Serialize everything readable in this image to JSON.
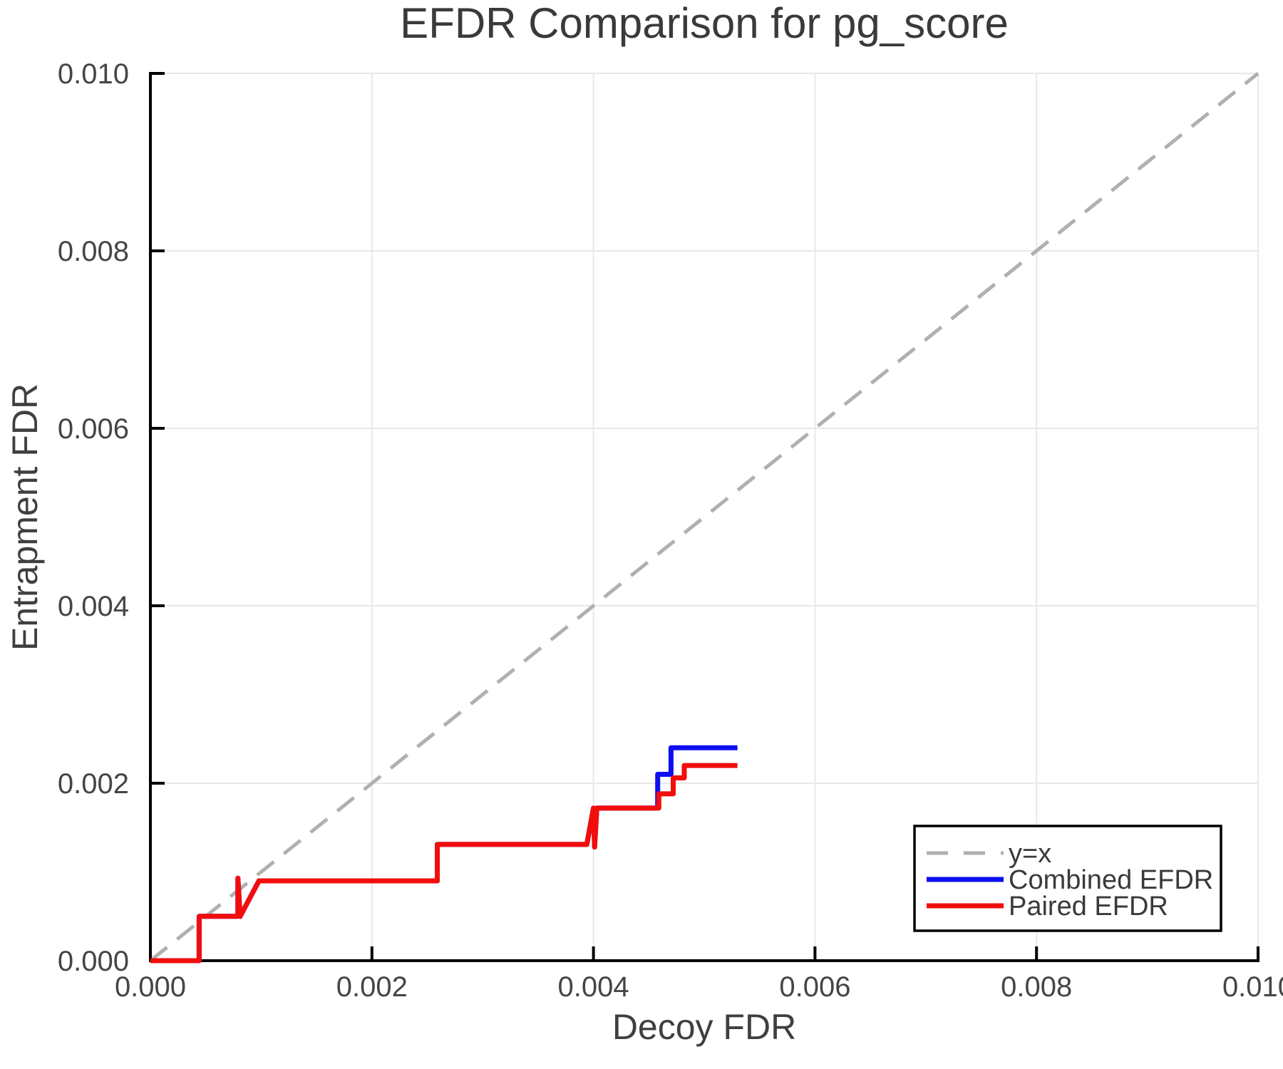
{
  "chart_data": {
    "type": "line",
    "title": "EFDR Comparison for pg_score",
    "xlabel": "Decoy FDR",
    "ylabel": "Entrapment FDR",
    "xlim": [
      0.0,
      0.01
    ],
    "ylim": [
      0.0,
      0.01
    ],
    "xticks": [
      0.0,
      0.002,
      0.004,
      0.006,
      0.008,
      0.01
    ],
    "yticks": [
      0.0,
      0.002,
      0.004,
      0.006,
      0.008,
      0.01
    ],
    "tick_decimals": 3,
    "grid": true,
    "legend_position": "lower right",
    "reference_line": {
      "label": "y=x",
      "from": [
        0.0,
        0.0
      ],
      "to": [
        0.01,
        0.01
      ],
      "color": "#b0b0b0",
      "dashed": true
    },
    "series": [
      {
        "name": "Combined EFDR",
        "color": "#0e0ef2",
        "points": [
          [
            0.0,
            0.0
          ],
          [
            0.00044,
            0.0
          ],
          [
            0.00044,
            0.0005
          ],
          [
            0.00079,
            0.0005
          ],
          [
            0.00079,
            0.00093
          ],
          [
            0.00081,
            0.0005
          ],
          [
            0.00098,
            0.0009
          ],
          [
            0.00259,
            0.0009
          ],
          [
            0.00259,
            0.00131
          ],
          [
            0.00394,
            0.00131
          ],
          [
            0.004,
            0.00172
          ],
          [
            0.00401,
            0.00128
          ],
          [
            0.00403,
            0.00172
          ],
          [
            0.00458,
            0.00172
          ],
          [
            0.00458,
            0.0021
          ],
          [
            0.0047,
            0.0021
          ],
          [
            0.0047,
            0.0024
          ],
          [
            0.0053,
            0.0024
          ]
        ]
      },
      {
        "name": "Paired EFDR",
        "color": "#f20d0d",
        "points": [
          [
            0.0,
            0.0
          ],
          [
            0.00044,
            0.0
          ],
          [
            0.00044,
            0.0005
          ],
          [
            0.00079,
            0.0005
          ],
          [
            0.00079,
            0.00093
          ],
          [
            0.00081,
            0.0005
          ],
          [
            0.00098,
            0.0009
          ],
          [
            0.00259,
            0.0009
          ],
          [
            0.00259,
            0.00131
          ],
          [
            0.00394,
            0.00131
          ],
          [
            0.004,
            0.00172
          ],
          [
            0.00401,
            0.00128
          ],
          [
            0.00403,
            0.00172
          ],
          [
            0.00459,
            0.00172
          ],
          [
            0.00459,
            0.00188
          ],
          [
            0.00472,
            0.00188
          ],
          [
            0.00472,
            0.00206
          ],
          [
            0.00482,
            0.00206
          ],
          [
            0.00482,
            0.0022
          ],
          [
            0.0053,
            0.0022
          ]
        ]
      }
    ],
    "colors": {
      "grid": "#e8e8e8",
      "axis": "#000000",
      "background": "#ffffff"
    }
  }
}
